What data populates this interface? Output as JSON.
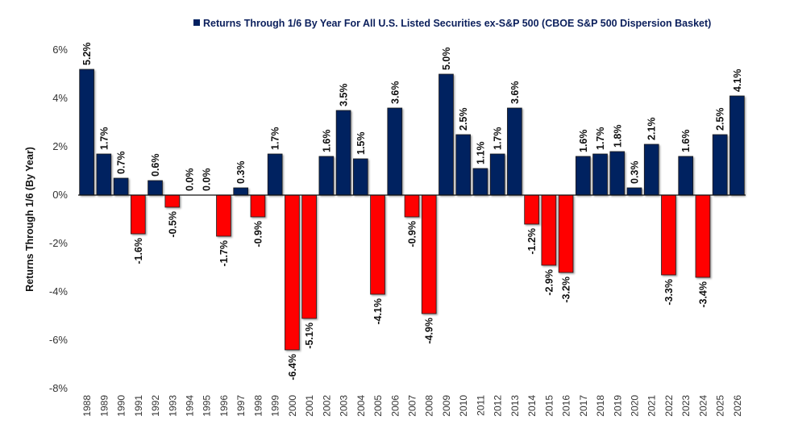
{
  "chart_data": {
    "type": "bar",
    "title": "Returns Through 1/6 By Year For All U.S. Listed Securities ex-S&P 500 (CBOE S&P 500 Dispersion Basket)",
    "legend": {
      "entries": [
        "Returns Through 1/6 By Year For All U.S. Listed Securities ex-S&P 500 (CBOE S&P 500 Dispersion Basket)"
      ],
      "placement": "top-center"
    },
    "xlabel": "",
    "ylabel": "Returns Through 1/6 (By Year)",
    "ylim": [
      -8,
      6
    ],
    "yticks": [
      6,
      4,
      2,
      0,
      -2,
      -4,
      -6,
      -8
    ],
    "ytick_labels": [
      "6%",
      "4%",
      "2%",
      "0%",
      "-2%",
      "-4%",
      "-6%",
      "-8%"
    ],
    "grid": false,
    "colors": {
      "positive": "#002060",
      "negative": "#ff0000",
      "title": "#0b1f5c"
    },
    "categories": [
      "1988",
      "1989",
      "1990",
      "1991",
      "1992",
      "1993",
      "1994",
      "1995",
      "1996",
      "1997",
      "1998",
      "1999",
      "2000",
      "2001",
      "2002",
      "2003",
      "2004",
      "2005",
      "2006",
      "2007",
      "2008",
      "2009",
      "2010",
      "2011",
      "2012",
      "2013",
      "2014",
      "2015",
      "2016",
      "2017",
      "2018",
      "2019",
      "2020",
      "2021",
      "2022",
      "2023",
      "2024",
      "2025",
      "2026"
    ],
    "values": [
      5.2,
      1.7,
      0.7,
      -1.6,
      0.6,
      -0.5,
      0.0,
      0.0,
      -1.7,
      0.3,
      -0.9,
      1.7,
      -6.4,
      -5.1,
      1.6,
      3.5,
      1.5,
      -4.1,
      3.6,
      -0.9,
      -4.9,
      5.0,
      2.5,
      1.1,
      1.7,
      3.6,
      -1.2,
      -2.9,
      -3.2,
      1.6,
      1.7,
      1.8,
      0.3,
      2.1,
      -3.3,
      1.6,
      -3.4,
      2.5,
      4.1
    ],
    "data_labels": [
      "5.2%",
      "1.7%",
      "0.7%",
      "-1.6%",
      "0.6%",
      "-0.5%",
      "0.0%",
      "0.0%",
      "-1.7%",
      "0.3%",
      "-0.9%",
      "1.7%",
      "-6.4%",
      "-5.1%",
      "1.6%",
      "3.5%",
      "1.5%",
      "-4.1%",
      "3.6%",
      "-0.9%",
      "-4.9%",
      "5.0%",
      "2.5%",
      "1.1%",
      "1.7%",
      "3.6%",
      "-1.2%",
      "-2.9%",
      "-3.2%",
      "1.6%",
      "1.7%",
      "1.8%",
      "0.3%",
      "2.1%",
      "-3.3%",
      "1.6%",
      "-3.4%",
      "2.5%",
      "4.1%"
    ],
    "unit": "%"
  }
}
